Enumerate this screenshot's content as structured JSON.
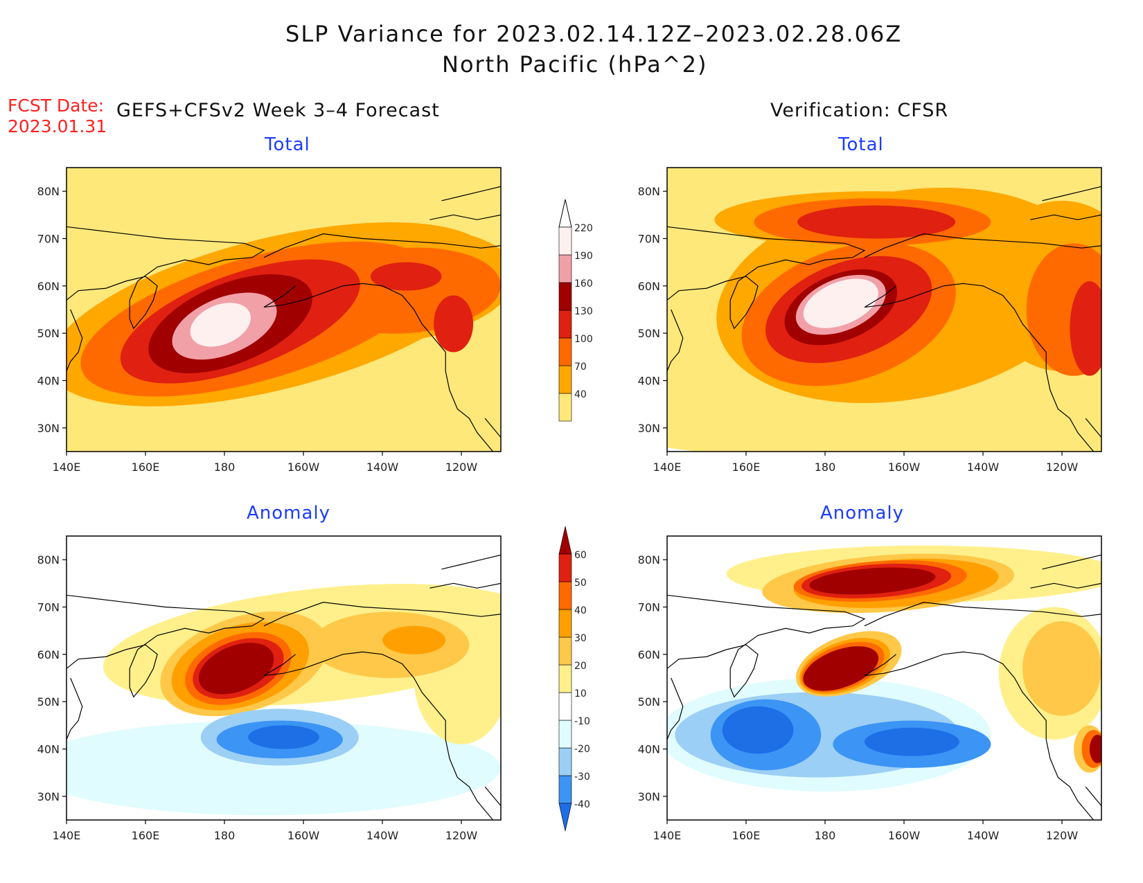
{
  "figure": {
    "title_line1": "SLP Variance for 2023.02.14.12Z–2023.02.28.06Z",
    "title_line2": "North Pacific (hPa^2)",
    "fcst_label": "FCST Date:",
    "fcst_date": "2023.01.31",
    "left_header": "GEFS+CFSv2 Week 3–4 Forecast",
    "right_header": "Verification: CFSR"
  },
  "colors": {
    "total_levels": [
      "#ffe87a",
      "#ffa800",
      "#ff6a00",
      "#e02010",
      "#a00000",
      "#f2a0a8",
      "#fff0f0"
    ],
    "anomaly_levels": [
      "#1e6ee6",
      "#3c94f5",
      "#9ccff5",
      "#e0fcff",
      "#ffffff",
      "#fff08c",
      "#ffc848",
      "#ffa000",
      "#ff6a00",
      "#e02010",
      "#a00000"
    ],
    "coast": "#000000",
    "subtitle": "#1a3cff",
    "fcst_text": "#ff2020"
  },
  "axes": {
    "lon_labels": [
      "140E",
      "160E",
      "180",
      "160W",
      "140W",
      "120W"
    ],
    "lat_labels": [
      "30N",
      "40N",
      "50N",
      "60N",
      "70N",
      "80N"
    ],
    "lon_range": [
      140,
      250
    ],
    "lat_range": [
      25,
      85
    ]
  },
  "colorbars": {
    "total": {
      "levels": [
        "40",
        "70",
        "100",
        "130",
        "160",
        "190",
        "220"
      ]
    },
    "anomaly": {
      "levels": [
        "-40",
        "-30",
        "-20",
        "-10",
        "10",
        "20",
        "30",
        "40",
        "50",
        "60"
      ]
    }
  },
  "panels": [
    {
      "id": "forecast-total",
      "subtitle": "Total",
      "scale": "total",
      "blobs": [
        {
          "level": 0,
          "cx": 200,
          "cy": 57,
          "rx": 200,
          "ry": 40,
          "rot": 0
        },
        {
          "level": 1,
          "cx": 192,
          "cy": 54,
          "rx": 58,
          "ry": 16,
          "rot": -14
        },
        {
          "level": 1,
          "cx": 222,
          "cy": 60,
          "rx": 32,
          "ry": 12,
          "rot": -6
        },
        {
          "level": 2,
          "cx": 188,
          "cy": 53,
          "rx": 46,
          "ry": 13,
          "rot": -16
        },
        {
          "level": 2,
          "cx": 226,
          "cy": 59,
          "rx": 24,
          "ry": 9,
          "rot": -4
        },
        {
          "level": 3,
          "cx": 184,
          "cy": 52.5,
          "rx": 32,
          "ry": 10,
          "rot": -20
        },
        {
          "level": 3,
          "cx": 226,
          "cy": 62,
          "rx": 9,
          "ry": 3,
          "rot": 0
        },
        {
          "level": 3,
          "cx": 238,
          "cy": 52,
          "rx": 5,
          "ry": 6,
          "rot": 0
        },
        {
          "level": 4,
          "cx": 181.5,
          "cy": 52,
          "rx": 22,
          "ry": 8.5,
          "rot": -22
        },
        {
          "level": 5,
          "cx": 180,
          "cy": 51.5,
          "rx": 14,
          "ry": 6,
          "rot": -22
        },
        {
          "level": 6,
          "cx": 179,
          "cy": 51.8,
          "rx": 8,
          "ry": 4.2,
          "rot": -22
        }
      ]
    },
    {
      "id": "verification-total",
      "subtitle": "Total",
      "scale": "total",
      "blobs": [
        {
          "level": 0,
          "cx": 210,
          "cy": 60,
          "rx": 160,
          "ry": 38,
          "rot": 0
        },
        {
          "level": 1,
          "cx": 200,
          "cy": 58,
          "rx": 48,
          "ry": 22,
          "rot": -10
        },
        {
          "level": 1,
          "cx": 192,
          "cy": 74,
          "rx": 40,
          "ry": 6,
          "rot": 0
        },
        {
          "level": 1,
          "cx": 240,
          "cy": 60,
          "rx": 20,
          "ry": 18,
          "rot": 0
        },
        {
          "level": 2,
          "cx": 186,
          "cy": 54,
          "rx": 28,
          "ry": 14,
          "rot": -18
        },
        {
          "level": 2,
          "cx": 192,
          "cy": 73.5,
          "rx": 30,
          "ry": 5,
          "rot": 0
        },
        {
          "level": 2,
          "cx": 243,
          "cy": 55,
          "rx": 12,
          "ry": 14,
          "rot": 0
        },
        {
          "level": 3,
          "cx": 186,
          "cy": 55,
          "rx": 22,
          "ry": 10,
          "rot": -20
        },
        {
          "level": 3,
          "cx": 193,
          "cy": 73.5,
          "rx": 20,
          "ry": 3.5,
          "rot": 0
        },
        {
          "level": 3,
          "cx": 247,
          "cy": 51,
          "rx": 5,
          "ry": 10,
          "rot": 0
        },
        {
          "level": 4,
          "cx": 184,
          "cy": 55.5,
          "rx": 15,
          "ry": 7,
          "rot": -22
        },
        {
          "level": 5,
          "cx": 184,
          "cy": 56,
          "rx": 12,
          "ry": 5.5,
          "rot": -22
        },
        {
          "level": 6,
          "cx": 184,
          "cy": 56.3,
          "rx": 10,
          "ry": 4.5,
          "rot": -22
        }
      ]
    },
    {
      "id": "forecast-anomaly",
      "subtitle": "Anomaly",
      "scale": "anomaly",
      "blobs": [
        {
          "level": 3,
          "cx": 190,
          "cy": 36,
          "rx": 60,
          "ry": 10,
          "rot": 0
        },
        {
          "level": 5,
          "cx": 205,
          "cy": 62,
          "rx": 56,
          "ry": 12,
          "rot": -6
        },
        {
          "level": 5,
          "cx": 240,
          "cy": 55,
          "rx": 12,
          "ry": 14,
          "rot": 0
        },
        {
          "level": 6,
          "cx": 185,
          "cy": 58,
          "rx": 22,
          "ry": 10,
          "rot": -18
        },
        {
          "level": 6,
          "cx": 222,
          "cy": 62,
          "rx": 20,
          "ry": 7,
          "rot": 0
        },
        {
          "level": 7,
          "cx": 184,
          "cy": 57.5,
          "rx": 18,
          "ry": 8.5,
          "rot": -18
        },
        {
          "level": 7,
          "cx": 228,
          "cy": 63,
          "rx": 8,
          "ry": 3,
          "rot": 0
        },
        {
          "level": 8,
          "cx": 183.5,
          "cy": 57,
          "rx": 14,
          "ry": 7,
          "rot": -20
        },
        {
          "level": 9,
          "cx": 183.5,
          "cy": 57,
          "rx": 12,
          "ry": 5.8,
          "rot": -20
        },
        {
          "level": 10,
          "cx": 183,
          "cy": 57,
          "rx": 10,
          "ry": 4.8,
          "rot": -22
        },
        {
          "level": 2,
          "cx": 194,
          "cy": 42.5,
          "rx": 20,
          "ry": 6,
          "rot": 0
        },
        {
          "level": 1,
          "cx": 194,
          "cy": 42,
          "rx": 16,
          "ry": 4,
          "rot": 0
        },
        {
          "level": 0,
          "cx": 195,
          "cy": 42.5,
          "rx": 9,
          "ry": 2.5,
          "rot": 0
        }
      ]
    },
    {
      "id": "verification-anomaly",
      "subtitle": "Anomaly",
      "scale": "anomaly",
      "blobs": [
        {
          "level": 5,
          "cx": 205,
          "cy": 77,
          "rx": 50,
          "ry": 6,
          "rot": 0
        },
        {
          "level": 5,
          "cx": 238,
          "cy": 56,
          "rx": 14,
          "ry": 14,
          "rot": 0
        },
        {
          "level": 6,
          "cx": 196,
          "cy": 75,
          "rx": 32,
          "ry": 6,
          "rot": -4
        },
        {
          "level": 6,
          "cx": 240,
          "cy": 57,
          "rx": 10,
          "ry": 10,
          "rot": 0
        },
        {
          "level": 7,
          "cx": 198,
          "cy": 75,
          "rx": 26,
          "ry": 5,
          "rot": -4
        },
        {
          "level": 8,
          "cx": 194,
          "cy": 75.5,
          "rx": 22,
          "ry": 4.2,
          "rot": -4
        },
        {
          "level": 9,
          "cx": 193,
          "cy": 75.5,
          "rx": 19,
          "ry": 3.5,
          "rot": -4
        },
        {
          "level": 10,
          "cx": 192,
          "cy": 75.5,
          "rx": 16,
          "ry": 2.7,
          "rot": -4
        },
        {
          "level": 3,
          "cx": 180,
          "cy": 43,
          "rx": 42,
          "ry": 12,
          "rot": 0
        },
        {
          "level": 2,
          "cx": 178,
          "cy": 43,
          "rx": 36,
          "ry": 9,
          "rot": 0
        },
        {
          "level": 1,
          "cx": 165,
          "cy": 43,
          "rx": 14,
          "ry": 7.5,
          "rot": 0
        },
        {
          "level": 1,
          "cx": 202,
          "cy": 41,
          "rx": 20,
          "ry": 5,
          "rot": 0
        },
        {
          "level": 0,
          "cx": 163,
          "cy": 44,
          "rx": 9,
          "ry": 5,
          "rot": 0
        },
        {
          "level": 0,
          "cx": 202,
          "cy": 41.5,
          "rx": 12,
          "ry": 3,
          "rot": 0
        },
        {
          "level": 6,
          "cx": 186,
          "cy": 58,
          "rx": 14,
          "ry": 6,
          "rot": -20
        },
        {
          "level": 7,
          "cx": 185,
          "cy": 57.5,
          "rx": 12,
          "ry": 5.2,
          "rot": -20
        },
        {
          "level": 8,
          "cx": 184.5,
          "cy": 57.3,
          "rx": 11,
          "ry": 4.6,
          "rot": -20
        },
        {
          "level": 10,
          "cx": 184,
          "cy": 57,
          "rx": 10,
          "ry": 4,
          "rot": -20
        },
        {
          "level": 6,
          "cx": 247,
          "cy": 40,
          "rx": 4,
          "ry": 5,
          "rot": 0
        },
        {
          "level": 8,
          "cx": 248,
          "cy": 40,
          "rx": 3,
          "ry": 4,
          "rot": 0
        },
        {
          "level": 10,
          "cx": 249,
          "cy": 40,
          "rx": 2,
          "ry": 3,
          "rot": 0
        }
      ]
    }
  ]
}
